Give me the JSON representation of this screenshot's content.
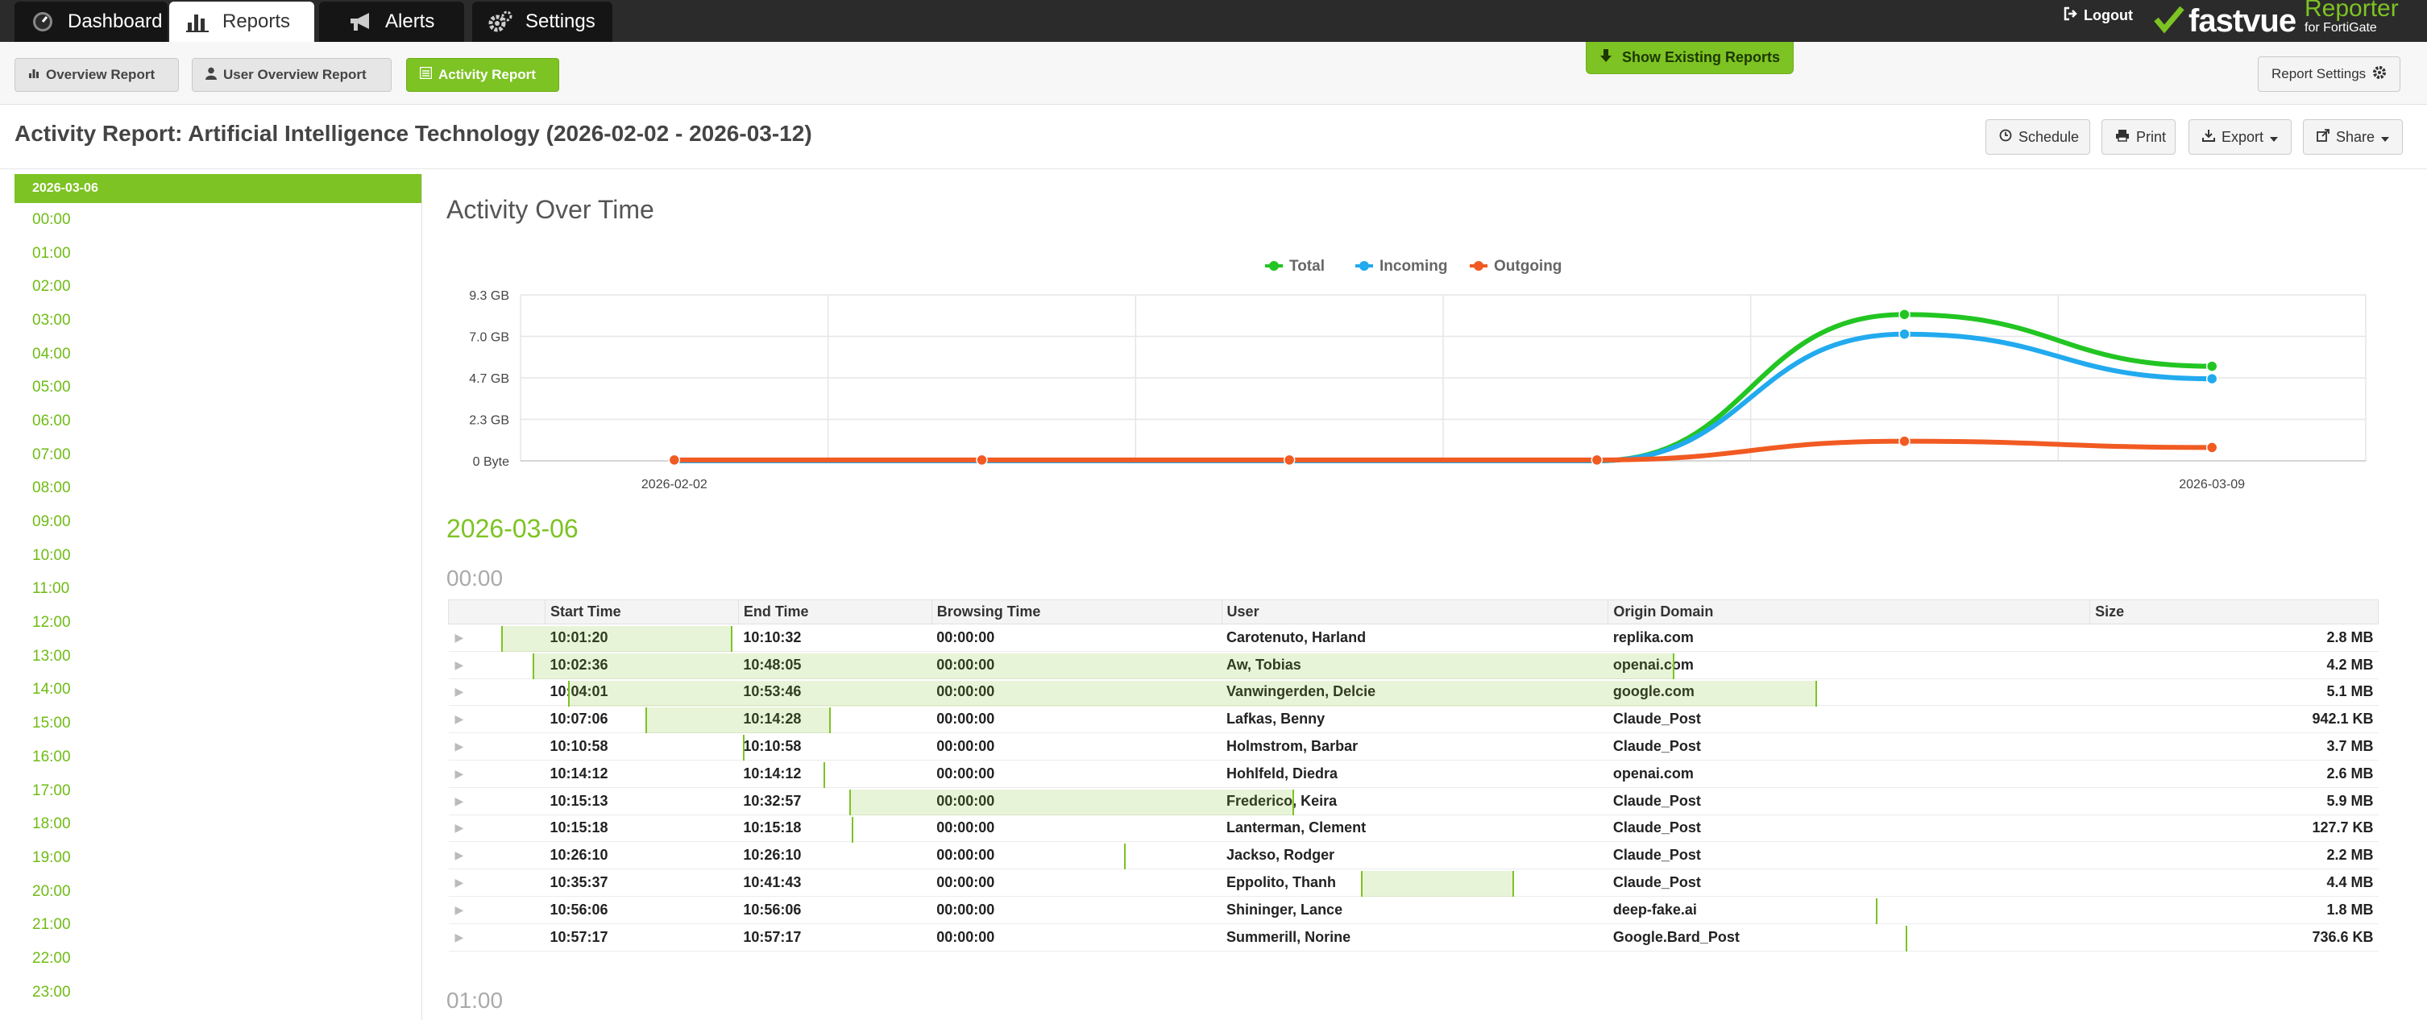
{
  "nav": {
    "tabs": [
      {
        "label": "Dashboard",
        "icon": "dashboard-gauge-icon",
        "active": false
      },
      {
        "label": "Reports",
        "icon": "bar-chart-icon",
        "active": true
      },
      {
        "label": "Alerts",
        "icon": "megaphone-icon",
        "active": false
      },
      {
        "label": "Settings",
        "icon": "gears-icon",
        "active": false
      }
    ],
    "logout": "Logout",
    "brand": {
      "name": "fastvue",
      "product": "Reporter",
      "subtitle": "for FortiGate"
    }
  },
  "report_bar": {
    "buttons": [
      {
        "label": "Overview Report",
        "icon": "bar-chart-icon"
      },
      {
        "label": "User Overview Report",
        "icon": "user-icon"
      },
      {
        "label": "Activity Report",
        "icon": "list-icon",
        "active": true
      }
    ],
    "show_existing": "Show Existing Reports",
    "settings": "Report Settings"
  },
  "title": "Activity Report: Artificial Intelligence Technology (2026-02-02 - 2026-03-12)",
  "actions": [
    {
      "label": "Schedule",
      "icon": "clock-icon"
    },
    {
      "label": "Print",
      "icon": "printer-icon"
    },
    {
      "label": "Export",
      "icon": "download-icon"
    },
    {
      "label": "Share",
      "icon": "share-icon"
    }
  ],
  "timenav": {
    "day": "2026-03-06",
    "hours": [
      "00:00",
      "01:00",
      "02:00",
      "03:00",
      "04:00",
      "05:00",
      "06:00",
      "07:00",
      "08:00",
      "09:00",
      "10:00",
      "11:00",
      "12:00",
      "13:00",
      "14:00",
      "15:00",
      "16:00",
      "17:00",
      "18:00",
      "19:00",
      "20:00",
      "21:00",
      "22:00",
      "23:00"
    ]
  },
  "section_title": "Activity Over Time",
  "chart_data": {
    "type": "line",
    "title": "",
    "xlabel": "",
    "ylabel": "",
    "legend_position": "top-center",
    "x_tick_labels": [
      "2026-02-02",
      "2026-03-09"
    ],
    "y_tick_labels": [
      "0 Byte",
      "2.3 GB",
      "4.7 GB",
      "7.0 GB",
      "9.3 GB"
    ],
    "ylim": [
      0,
      9.3
    ],
    "y_unit": "GB",
    "x_index": [
      0,
      1,
      2,
      3,
      4,
      5
    ],
    "series": [
      {
        "name": "Total",
        "color": "#22c522",
        "values": [
          0,
          0,
          0,
          0,
          8.2,
          5.3
        ]
      },
      {
        "name": "Incoming",
        "color": "#22aaee",
        "values": [
          0,
          0,
          0,
          0,
          7.1,
          4.6
        ]
      },
      {
        "name": "Outgoing",
        "color": "#f15a22",
        "values": [
          0.05,
          0.05,
          0.05,
          0.05,
          1.1,
          0.75
        ]
      }
    ],
    "grid": true
  },
  "date_heading": "2026-03-06",
  "hour_heading": "00:00",
  "next_hour_heading": "01:00",
  "table": {
    "columns": [
      "Start Time",
      "End Time",
      "Browsing Time",
      "User",
      "Origin Domain",
      "Size"
    ],
    "rows": [
      {
        "start": "10:01:20",
        "end": "10:10:32",
        "browse": "00:00:00",
        "user": "Carotenuto, Harland",
        "domain": "replika.com",
        "size": "2.8 MB",
        "bar_start": 0.0,
        "bar_end": 0.1232
      },
      {
        "start": "10:02:36",
        "end": "10:48:05",
        "browse": "00:00:00",
        "user": "Aw, Tobias",
        "domain": "openai.com",
        "size": "4.2 MB",
        "bar_start": 0.0169,
        "bar_end": 0.625
      },
      {
        "start": "10:04:01",
        "end": "10:53:46",
        "browse": "00:00:00",
        "user": "Vanwingerden, Delcie",
        "domain": "google.com",
        "size": "5.1 MB",
        "bar_start": 0.0358,
        "bar_end": 0.7009
      },
      {
        "start": "10:07:06",
        "end": "10:14:28",
        "browse": "00:00:00",
        "user": "Lafkas, Benny",
        "domain": "Claude_Post",
        "size": "942.1 KB",
        "bar_start": 0.077,
        "bar_end": 0.1755
      },
      {
        "start": "10:10:58",
        "end": "10:10:58",
        "browse": "00:00:00",
        "user": "Holmstrom, Barbar",
        "domain": "Claude_Post",
        "size": "3.7 MB",
        "bar_start": 0.1286,
        "bar_end": 0.1286
      },
      {
        "start": "10:14:12",
        "end": "10:14:12",
        "browse": "00:00:00",
        "user": "Hohlfeld, Diedra",
        "domain": "openai.com",
        "size": "2.6 MB",
        "bar_start": 0.1718,
        "bar_end": 0.1718
      },
      {
        "start": "10:15:13",
        "end": "10:32:57",
        "browse": "00:00:00",
        "user": "Frederico, Keira",
        "domain": "Claude_Post",
        "size": "5.9 MB",
        "bar_start": 0.1854,
        "bar_end": 0.4224
      },
      {
        "start": "10:15:18",
        "end": "10:15:18",
        "browse": "00:00:00",
        "user": "Lanterman, Clement",
        "domain": "Claude_Post",
        "size": "127.7 KB",
        "bar_start": 0.1865,
        "bar_end": 0.1865
      },
      {
        "start": "10:26:10",
        "end": "10:26:10",
        "browse": "00:00:00",
        "user": "Jackso, Rodger",
        "domain": "Claude_Post",
        "size": "2.2 MB",
        "bar_start": 0.3317,
        "bar_end": 0.3317
      },
      {
        "start": "10:35:37",
        "end": "10:41:43",
        "browse": "00:00:00",
        "user": "Eppolito, Thanh",
        "domain": "Claude_Post",
        "size": "4.4 MB",
        "bar_start": 0.458,
        "bar_end": 0.5395
      },
      {
        "start": "10:56:06",
        "end": "10:56:06",
        "browse": "00:00:00",
        "user": "Shininger, Lance",
        "domain": "deep-fake.ai",
        "size": "1.8 MB",
        "bar_start": 0.7321,
        "bar_end": 0.7321
      },
      {
        "start": "10:57:17",
        "end": "10:57:17",
        "browse": "00:00:00",
        "user": "Summerill, Norine",
        "domain": "Google.Bard_Post",
        "size": "736.6 KB",
        "bar_start": 0.748,
        "bar_end": 0.748
      }
    ]
  }
}
